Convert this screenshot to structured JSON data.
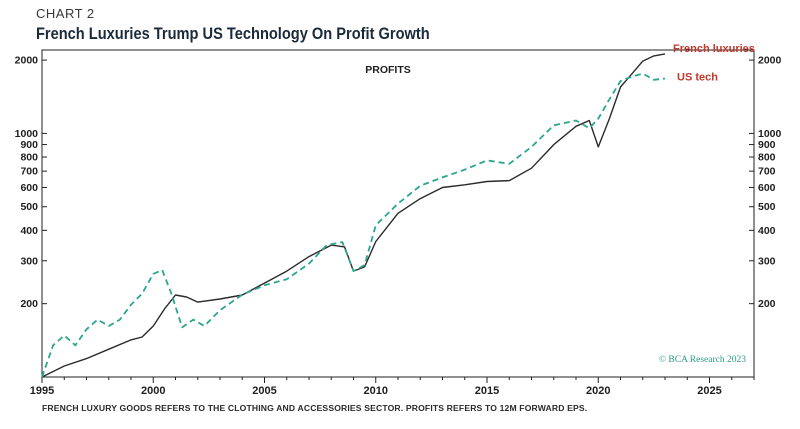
{
  "header": {
    "chart_label": "CHART 2",
    "title": "French Luxuries Trump US Technology On Profit Growth"
  },
  "footnote": "FRENCH LUXURY GOODS REFERS TO THE CLOTHING AND ACCESSORIES SECTOR. PROFITS REFERS TO 12M FORWARD EPS.",
  "credit": "© BCA Research 2023",
  "colors": {
    "french_luxuries": "#2b2b2b",
    "us_tech": "#2aa58e",
    "french_label": "#c0392b",
    "us_label": "#c0392b",
    "credit": "#2e9a86"
  },
  "chart_data": {
    "type": "line",
    "panel_title": "PROFITS",
    "yscale": "log",
    "ylim": [
      100,
      2200
    ],
    "xlim": [
      1995,
      2027
    ],
    "yticks": [
      200,
      300,
      400,
      500,
      600,
      700,
      800,
      900,
      1000,
      2000
    ],
    "ytick_labels": [
      "200",
      "300",
      "400",
      "500",
      "600",
      "700",
      "800",
      "900",
      "1000",
      "2000"
    ],
    "xticks": [
      1995,
      2000,
      2005,
      2010,
      2015,
      2020,
      2025
    ],
    "xtick_labels": [
      "1995",
      "2000",
      "2005",
      "2010",
      "2015",
      "2020",
      "2025"
    ],
    "grid": false,
    "series": [
      {
        "name": "French luxuries",
        "style": "solid",
        "x": [
          1995.0,
          1996.0,
          1997.0,
          1998.0,
          1999.0,
          1999.5,
          2000.0,
          2000.5,
          2001.0,
          2001.5,
          2002.0,
          2003.0,
          2004.0,
          2005.0,
          2006.0,
          2007.0,
          2008.0,
          2008.6,
          2009.0,
          2009.5,
          2010.0,
          2011.0,
          2012.0,
          2013.0,
          2014.0,
          2015.0,
          2016.0,
          2017.0,
          2018.0,
          2019.0,
          2019.6,
          2020.0,
          2020.5,
          2021.0,
          2021.5,
          2022.0,
          2022.5,
          2023.0
        ],
        "values": [
          100,
          111,
          119,
          130,
          142,
          146,
          162,
          190,
          217,
          213,
          203,
          209,
          217,
          243,
          272,
          312,
          348,
          342,
          272,
          283,
          360,
          470,
          540,
          600,
          615,
          635,
          640,
          720,
          900,
          1070,
          1130,
          880,
          1150,
          1550,
          1750,
          1980,
          2080,
          2120
        ]
      },
      {
        "name": "US tech",
        "style": "dashed",
        "x": [
          1995.0,
          1995.5,
          1996.0,
          1996.5,
          1997.0,
          1997.5,
          1998.0,
          1998.5,
          1999.0,
          1999.5,
          2000.0,
          2000.4,
          2000.8,
          2001.3,
          2001.8,
          2002.3,
          2003.0,
          2004.0,
          2005.0,
          2006.0,
          2007.0,
          2007.8,
          2008.5,
          2009.0,
          2009.5,
          2010.0,
          2011.0,
          2012.0,
          2013.0,
          2014.0,
          2015.0,
          2016.0,
          2017.0,
          2018.0,
          2019.0,
          2019.6,
          2020.0,
          2020.5,
          2021.0,
          2021.5,
          2022.0,
          2022.5,
          2023.0
        ],
        "values": [
          100,
          135,
          148,
          135,
          157,
          172,
          162,
          172,
          198,
          220,
          265,
          275,
          222,
          160,
          172,
          162,
          188,
          218,
          238,
          252,
          292,
          348,
          358,
          272,
          288,
          420,
          515,
          610,
          660,
          710,
          775,
          750,
          880,
          1080,
          1130,
          1050,
          1150,
          1380,
          1640,
          1710,
          1760,
          1660,
          1680
        ]
      }
    ],
    "legend": [
      {
        "text": "French luxuries",
        "placement": "right of line end"
      },
      {
        "text": "US tech",
        "placement": "right of line end"
      }
    ]
  }
}
